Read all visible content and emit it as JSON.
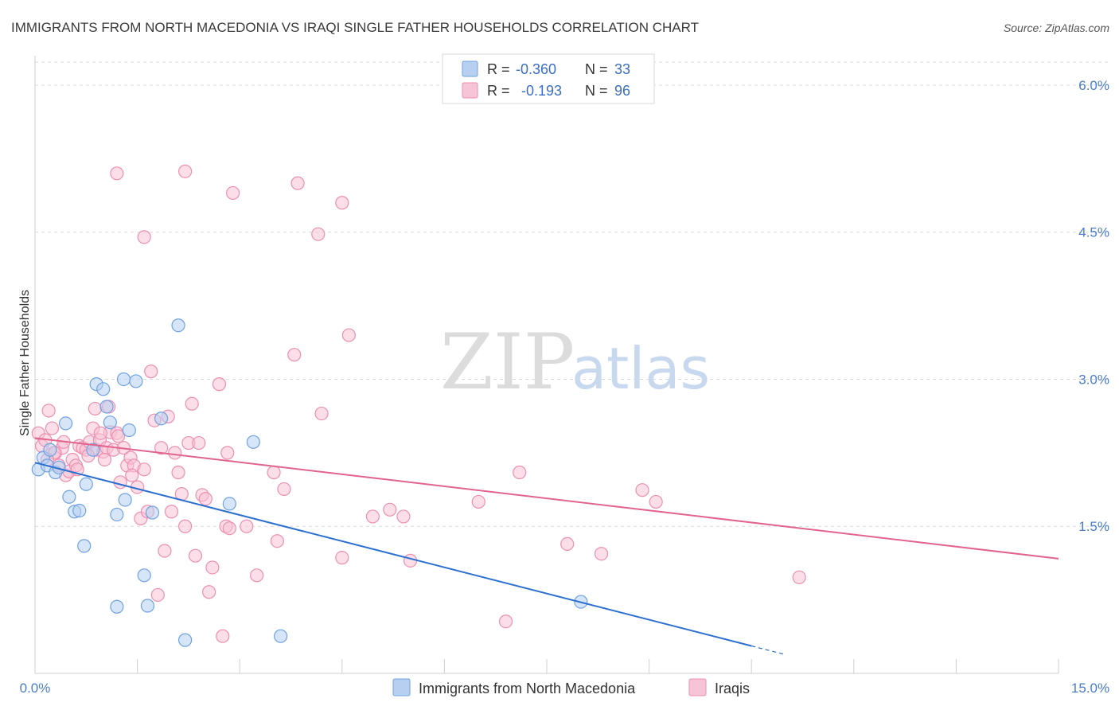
{
  "title": "IMMIGRANTS FROM NORTH MACEDONIA VS IRAQI SINGLE FATHER HOUSEHOLDS CORRELATION CHART",
  "source": "Source: ZipAtlas.com",
  "watermark": {
    "zip": "ZIP",
    "atlas": "atlas"
  },
  "colors": {
    "blue": "#6fa2e0",
    "blue_fill": "#b7d0f2",
    "blue_line": "#2b6fd0",
    "pink": "#ec8fb0",
    "pink_fill": "#f7c3d6",
    "pink_line": "#e0648e",
    "tick": "#4a7cc7",
    "grid": "#d9d9d9"
  },
  "legend": {
    "row1": {
      "r_label": "R =",
      "r_value": "-0.360",
      "n_label": "N =",
      "n_value": "33"
    },
    "row2": {
      "r_label": "R =",
      "r_value": "-0.193",
      "n_label": "N =",
      "n_value": "96"
    }
  },
  "chart_data": {
    "type": "scatter",
    "title": "IMMIGRANTS FROM NORTH MACEDONIA VS IRAQI SINGLE FATHER HOUSEHOLDS CORRELATION CHART",
    "xlabel": "",
    "ylabel": "Single Father Households",
    "xlim": [
      0,
      15
    ],
    "ylim": [
      0,
      6.3
    ],
    "x_tick_labels": [
      "0.0%",
      "15.0%"
    ],
    "y_ticks": [
      1.5,
      3.0,
      4.5,
      6.0
    ],
    "y_tick_labels": [
      "1.5%",
      "3.0%",
      "4.5%",
      "6.0%"
    ],
    "grid": true,
    "series": [
      {
        "name": "Immigrants from North Macedonia",
        "color": "blue",
        "r": -0.36,
        "n": 33,
        "trend": {
          "x0": 0.0,
          "y0": 2.15,
          "x1": 10.5,
          "y1": 0.28,
          "dash_to_x": 11.0
        },
        "points": [
          [
            0.05,
            2.08
          ],
          [
            0.12,
            2.2
          ],
          [
            0.18,
            2.12
          ],
          [
            0.22,
            2.28
          ],
          [
            0.3,
            2.05
          ],
          [
            0.35,
            2.1
          ],
          [
            0.45,
            2.55
          ],
          [
            0.5,
            1.8
          ],
          [
            0.58,
            1.65
          ],
          [
            0.65,
            1.66
          ],
          [
            0.72,
            1.3
          ],
          [
            0.75,
            1.93
          ],
          [
            0.85,
            2.28
          ],
          [
            0.9,
            2.95
          ],
          [
            1.0,
            2.9
          ],
          [
            1.05,
            2.72
          ],
          [
            1.1,
            2.56
          ],
          [
            1.2,
            1.62
          ],
          [
            1.2,
            0.68
          ],
          [
            1.3,
            3.0
          ],
          [
            1.32,
            1.77
          ],
          [
            1.38,
            2.48
          ],
          [
            1.48,
            2.98
          ],
          [
            1.6,
            1.0
          ],
          [
            1.65,
            0.69
          ],
          [
            1.72,
            1.64
          ],
          [
            1.85,
            2.6
          ],
          [
            2.1,
            3.55
          ],
          [
            2.2,
            0.34
          ],
          [
            2.85,
            1.73
          ],
          [
            3.2,
            2.36
          ],
          [
            3.6,
            0.38
          ],
          [
            8.0,
            0.73
          ]
        ]
      },
      {
        "name": "Iraqis",
        "color": "pink",
        "r": -0.193,
        "n": 96,
        "trend": {
          "x0": 0.0,
          "y0": 2.4,
          "x1": 15.0,
          "y1": 1.17
        },
        "points": [
          [
            0.05,
            2.45
          ],
          [
            0.1,
            2.32
          ],
          [
            0.15,
            2.38
          ],
          [
            0.2,
            2.68
          ],
          [
            0.25,
            2.5
          ],
          [
            0.3,
            2.25
          ],
          [
            0.35,
            2.12
          ],
          [
            0.4,
            2.3
          ],
          [
            0.45,
            2.02
          ],
          [
            0.5,
            2.06
          ],
          [
            0.55,
            2.18
          ],
          [
            0.6,
            2.12
          ],
          [
            0.65,
            2.32
          ],
          [
            0.7,
            2.3
          ],
          [
            0.75,
            2.28
          ],
          [
            0.8,
            2.36
          ],
          [
            0.85,
            2.5
          ],
          [
            0.88,
            2.7
          ],
          [
            0.9,
            2.28
          ],
          [
            0.95,
            2.38
          ],
          [
            1.0,
            2.26
          ],
          [
            1.05,
            2.3
          ],
          [
            1.08,
            2.72
          ],
          [
            1.1,
            2.46
          ],
          [
            1.15,
            2.28
          ],
          [
            1.2,
            2.45
          ],
          [
            1.25,
            1.95
          ],
          [
            1.3,
            2.3
          ],
          [
            1.35,
            2.12
          ],
          [
            1.2,
            5.1
          ],
          [
            1.4,
            2.2
          ],
          [
            1.45,
            2.12
          ],
          [
            1.5,
            1.9
          ],
          [
            1.55,
            1.58
          ],
          [
            1.6,
            2.08
          ],
          [
            1.65,
            1.65
          ],
          [
            1.7,
            3.08
          ],
          [
            1.75,
            2.58
          ],
          [
            1.8,
            0.8
          ],
          [
            1.85,
            2.3
          ],
          [
            1.9,
            1.25
          ],
          [
            1.95,
            2.62
          ],
          [
            2.0,
            1.65
          ],
          [
            2.05,
            2.25
          ],
          [
            2.1,
            2.05
          ],
          [
            2.15,
            1.83
          ],
          [
            2.2,
            1.5
          ],
          [
            2.25,
            2.35
          ],
          [
            2.3,
            2.75
          ],
          [
            2.35,
            1.2
          ],
          [
            2.4,
            2.35
          ],
          [
            2.45,
            1.82
          ],
          [
            2.5,
            1.78
          ],
          [
            2.55,
            0.83
          ],
          [
            2.6,
            1.08
          ],
          [
            2.7,
            2.95
          ],
          [
            2.75,
            0.38
          ],
          [
            2.8,
            1.5
          ],
          [
            2.82,
            2.25
          ],
          [
            2.85,
            1.48
          ],
          [
            2.2,
            5.12
          ],
          [
            2.9,
            4.9
          ],
          [
            3.1,
            1.5
          ],
          [
            3.25,
            1.0
          ],
          [
            3.55,
            1.35
          ],
          [
            3.65,
            1.88
          ],
          [
            3.5,
            2.05
          ],
          [
            3.85,
            5.0
          ],
          [
            3.8,
            3.25
          ],
          [
            4.15,
            4.48
          ],
          [
            4.2,
            2.65
          ],
          [
            4.5,
            1.18
          ],
          [
            4.5,
            4.8
          ],
          [
            4.6,
            3.45
          ],
          [
            4.95,
            1.6
          ],
          [
            5.2,
            1.67
          ],
          [
            5.5,
            1.15
          ],
          [
            5.4,
            1.6
          ],
          [
            6.5,
            1.75
          ],
          [
            6.9,
            0.53
          ],
          [
            7.1,
            2.05
          ],
          [
            7.8,
            1.32
          ],
          [
            8.3,
            1.22
          ],
          [
            8.9,
            1.87
          ],
          [
            9.1,
            1.75
          ],
          [
            11.2,
            0.98
          ],
          [
            1.6,
            4.45
          ],
          [
            0.28,
            2.25
          ],
          [
            0.62,
            2.08
          ],
          [
            0.96,
            2.45
          ],
          [
            1.42,
            2.02
          ],
          [
            1.22,
            2.42
          ],
          [
            0.18,
            2.18
          ],
          [
            0.42,
            2.36
          ],
          [
            0.78,
            2.22
          ],
          [
            1.02,
            2.18
          ]
        ]
      }
    ]
  },
  "bottom_legend": {
    "series1": "Immigrants from North Macedonia",
    "series2": "Iraqis"
  }
}
